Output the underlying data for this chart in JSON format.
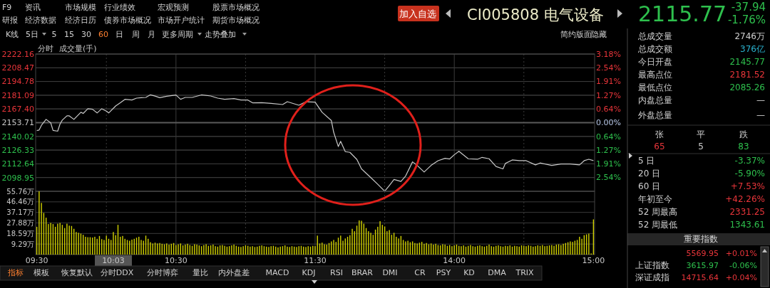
{
  "chart_data": [
    {
      "type": "line",
      "ylim": [
        2085.26,
        2222.16
      ],
      "y2lim": [
        -3.18,
        3.18
      ],
      "grid": true,
      "categories": [
        null,
        null,
        null,
        null,
        null,
        null,
        null,
        null,
        null,
        null,
        null,
        null,
        null,
        null,
        null,
        null,
        null,
        null,
        null,
        null,
        null,
        null,
        null,
        null,
        null,
        null,
        null,
        null,
        null,
        null,
        null,
        null,
        null,
        null,
        null,
        null,
        null,
        null,
        null,
        null,
        null,
        null,
        null,
        null,
        null,
        null,
        null,
        null,
        null,
        null,
        null,
        null,
        null,
        null,
        null,
        null,
        null,
        null,
        null,
        null,
        null,
        null,
        null,
        null,
        null,
        null,
        null,
        null,
        null,
        null,
        null,
        null,
        null,
        null,
        null,
        null,
        null,
        null,
        null,
        null,
        null,
        null,
        null,
        null,
        null,
        null,
        null,
        null,
        null,
        null,
        null,
        null,
        null,
        null,
        null,
        null,
        null,
        null,
        null,
        null,
        null,
        null,
        null,
        null,
        null,
        null,
        null,
        null,
        null,
        null,
        null,
        null,
        null,
        null,
        null,
        null,
        null,
        null,
        null,
        null,
        null,
        null,
        null,
        null,
        null,
        null,
        null,
        null,
        null,
        null,
        null,
        null,
        null,
        null,
        null,
        null,
        null,
        null,
        null,
        null,
        null,
        null,
        null,
        null,
        null,
        null,
        null,
        null,
        null,
        null,
        null,
        null,
        null,
        null,
        null,
        null,
        null,
        null,
        null,
        null,
        null,
        null,
        null,
        null,
        null,
        null,
        null,
        null,
        null,
        null,
        null,
        null,
        null,
        null,
        null,
        null,
        null,
        null,
        null,
        null,
        null,
        null,
        null,
        null,
        null,
        null,
        null,
        null,
        null,
        null,
        null,
        null,
        null,
        null,
        null,
        null,
        null,
        null,
        null,
        null,
        null,
        null,
        null,
        null,
        null,
        null,
        null,
        null,
        null,
        null,
        null,
        null,
        null,
        null,
        null,
        null,
        null,
        null,
        null,
        null,
        null,
        null,
        null,
        null,
        null,
        null,
        null,
        null,
        null,
        null,
        null,
        null,
        null,
        null,
        null,
        null,
        null,
        null,
        null,
        null,
        null
      ],
      "yticks": [
        2222.16,
        2208.47,
        2194.78,
        2181.09,
        {
          "value": 2167.4,
          "label": "2167.40"
        },
        2153.71,
        2140.02,
        2126.33,
        2112.64,
        2098.95
      ],
      "y2ticks": [
        {
          "value": 3.18,
          "label": "3.18%"
        },
        {
          "value": 2.54,
          "label": "2.54%"
        },
        {
          "value": 1.91,
          "label": "1.91%"
        },
        {
          "value": 1.27,
          "label": "1.27%"
        },
        {
          "value": 0.64,
          "label": "0.64%"
        },
        {
          "value": 0,
          "label": "0.00%"
        },
        {
          "value": -0.64,
          "label": "0.64%"
        },
        {
          "value": -1.27,
          "label": "1.27%"
        },
        {
          "value": -1.91,
          "label": "1.91%"
        },
        {
          "value": -2.54,
          "label": "2.54%"
        }
      ],
      "ref_lines": [
        {
          "axis": "y",
          "value": 2153.71,
          "color": "#5a5a5a"
        }
      ],
      "annotations": [
        "分时",
        "成交量(手)"
      ],
      "series": [
        {
          "color": "#c8c8c8",
          "values": [
            2145.8,
            2146.4,
            2151.1,
            null,
            2157.0,
            null,
            2153.5,
            2146.0,
            null,
            2145.2,
            2152.3,
            2156.3,
            null,
            2160.5,
            2160.5,
            null,
            2157.0,
            null,
            null,
            2164.1,
            2162.9,
            null,
            2167.6,
            null,
            2167.1,
            null,
            2163.4,
            null,
            2167.6,
            null,
            2165.2,
            2163.4,
            null,
            null,
            2170.4,
            null,
            2173.5,
            null,
            2177.0,
            null,
            null,
            2176.3,
            null,
            2178.2,
            null,
            2178.6,
            null,
            2178.9,
            null,
            2181.5,
            null,
            2180.2,
            null,
            2178.6,
            null,
            null,
            2180.1,
            null,
            null,
            null,
            2181.3,
            null,
            2177.0,
            null,
            2178.9,
            null,
            null,
            2178.9,
            null,
            null,
            null,
            2181.4,
            null,
            null,
            null,
            2180.3,
            null,
            null,
            2178.2,
            null,
            null,
            2177.0,
            null,
            null,
            null,
            2177.7,
            null,
            null,
            2176.3,
            null,
            null,
            2176.3,
            null,
            2173.5,
            null,
            null,
            null,
            2173.7,
            null,
            null,
            null,
            2173.0,
            null,
            null,
            null,
            null,
            2171.8,
            null,
            2174.6,
            null,
            null,
            null,
            null,
            2171.1,
            null,
            null,
            2174.6,
            null,
            null,
            null,
            2174.2,
            null,
            null,
            2164.1,
            null,
            null,
            null,
            2155.8,
            2144.1,
            null,
            2129.9,
            2135.1,
            null,
            2124.8,
            null,
            2124.1,
            null,
            null,
            2117.0,
            null,
            2107.6,
            null,
            null,
            null,
            2098.9,
            null,
            null,
            2092.3,
            null,
            null,
            2085.3,
            null,
            2091.1,
            null,
            2097.0,
            null,
            null,
            2095.1,
            null,
            2100.5,
            null,
            null,
            2114.6,
            null,
            2111.1,
            null,
            null,
            2104.5,
            null,
            null,
            2111.1,
            null,
            null,
            2115.8,
            null,
            null,
            2118.2,
            null,
            2117.5,
            null,
            2121.7,
            null,
            2125.2,
            null,
            null,
            null,
            2117.7,
            null,
            null,
            null,
            2117.2,
            null,
            2119.1,
            null,
            null,
            2117.7,
            null,
            null,
            2110.0,
            null,
            null,
            2107.6,
            2113.0,
            null,
            null,
            2116.5,
            null,
            null,
            2115.8,
            null,
            null,
            2115.8,
            null,
            null,
            null,
            2111.6,
            null,
            2113.5,
            null,
            null,
            null,
            null,
            2111.1,
            null,
            null,
            null,
            2112.5,
            null,
            null,
            null,
            2112.5,
            null,
            null,
            null,
            2111.6,
            null,
            2115.8,
            null,
            2117.2,
            null,
            2115.8
          ]
        }
      ]
    },
    {
      "type": "bar",
      "ylim": [
        0,
        55.76
      ],
      "grid": true,
      "categories": [
        "09:30",
        null,
        null,
        null,
        null,
        null,
        null,
        null,
        null,
        null,
        null,
        null,
        null,
        null,
        null,
        null,
        null,
        null,
        null,
        null,
        null,
        null,
        null,
        null,
        null,
        null,
        null,
        null,
        null,
        null,
        null,
        null,
        null,
        "10:03",
        null,
        null,
        null,
        null,
        null,
        null,
        null,
        null,
        null,
        null,
        null,
        null,
        null,
        null,
        null,
        null,
        null,
        null,
        null,
        null,
        null,
        null,
        null,
        null,
        null,
        null,
        "10:30",
        null,
        null,
        null,
        null,
        null,
        null,
        null,
        null,
        null,
        null,
        null,
        null,
        null,
        null,
        null,
        null,
        null,
        null,
        null,
        null,
        null,
        null,
        null,
        null,
        null,
        null,
        null,
        null,
        null,
        null,
        null,
        null,
        null,
        null,
        null,
        null,
        null,
        null,
        null,
        null,
        null,
        null,
        null,
        null,
        null,
        null,
        null,
        null,
        null,
        null,
        null,
        null,
        null,
        null,
        null,
        null,
        null,
        null,
        null,
        "11:30",
        null,
        null,
        null,
        null,
        null,
        null,
        null,
        null,
        null,
        null,
        null,
        null,
        null,
        null,
        null,
        null,
        null,
        null,
        null,
        null,
        null,
        null,
        null,
        null,
        null,
        null,
        null,
        null,
        null,
        null,
        null,
        null,
        null,
        null,
        null,
        null,
        null,
        null,
        null,
        null,
        null,
        null,
        null,
        null,
        null,
        null,
        null,
        null,
        null,
        null,
        null,
        null,
        null,
        null,
        null,
        null,
        null,
        null,
        null,
        "14:00",
        null,
        null,
        null,
        null,
        null,
        null,
        null,
        null,
        null,
        null,
        null,
        null,
        null,
        null,
        null,
        null,
        null,
        null,
        null,
        null,
        null,
        null,
        null,
        null,
        null,
        null,
        null,
        null,
        null,
        null,
        null,
        null,
        null,
        null,
        null,
        null,
        null,
        null,
        null,
        null,
        null,
        null,
        null,
        null,
        null,
        null,
        null,
        null,
        null,
        null,
        null,
        null,
        null,
        null,
        null,
        null,
        null,
        null,
        null,
        "15:00"
      ],
      "yticks": [
        {
          "value": 55.76,
          "label": "55.76万"
        },
        {
          "value": 46.46,
          "label": "46.46万"
        },
        {
          "value": 37.17,
          "label": "37.17万"
        },
        {
          "value": 27.88,
          "label": "27.88万"
        },
        {
          "value": 18.59,
          "label": "18.59万"
        },
        {
          "value": 9.29,
          "label": "9.29万"
        }
      ],
      "series": [
        {
          "color": "#d2d200",
          "values": [
            24.5,
            55.7,
            45.5,
            36.7,
            32.5,
            26.9,
            27.9,
            26.9,
            24.5,
            27.2,
            27.9,
            26.2,
            23.4,
            27.2,
            25.5,
            25.2,
            22.7,
            19.9,
            19.2,
            18.5,
            17.4,
            15.7,
            15.3,
            15.3,
            15.0,
            15.7,
            13.9,
            16.4,
            13.6,
            12.9,
            16.7,
            13.9,
            12.9,
            19.9,
            17.1,
            26.2,
            15.7,
            16.4,
            13.9,
            12.9,
            12.2,
            13.2,
            13.9,
            14.9,
            15.7,
            12.9,
            12.2,
            16.7,
            13.9,
            10.9,
            9.8,
            10.5,
            9.8,
            10.2,
            9.5,
            9.1,
            9.8,
            8.8,
            9.5,
            10.2,
            8.4,
            9.1,
            9.8,
            8.1,
            8.8,
            9.5,
            8.4,
            7.7,
            9.1,
            8.8,
            8.1,
            7.4,
            8.4,
            9.1,
            7.7,
            8.1,
            8.8,
            7.4,
            7.0,
            8.1,
            8.4,
            7.7,
            7.0,
            7.4,
            8.1,
            8.8,
            7.7,
            7.0,
            6.7,
            7.4,
            8.1,
            7.7,
            7.0,
            7.4,
            6.7,
            7.0,
            7.7,
            8.1,
            7.4,
            7.0,
            6.7,
            7.4,
            7.7,
            7.0,
            6.3,
            7.0,
            7.4,
            8.1,
            7.0,
            6.7,
            7.4,
            7.0,
            6.7,
            7.4,
            7.7,
            7.0,
            6.7,
            7.4,
            7.0,
            7.7,
            7.4,
            16.7,
            9.8,
            10.5,
            9.1,
            8.8,
            10.2,
            11.6,
            12.9,
            11.2,
            14.9,
            16.7,
            12.2,
            14.2,
            15.7,
            17.1,
            22.7,
            20.6,
            25.5,
            30.1,
            29.8,
            27.2,
            23.4,
            20.6,
            19.2,
            17.4,
            22.0,
            24.5,
            29.4,
            26.2,
            24.8,
            20.6,
            21.6,
            17.4,
            19.2,
            15.7,
            14.2,
            16.4,
            12.9,
            11.6,
            12.2,
            10.9,
            11.6,
            10.2,
            9.8,
            10.5,
            11.2,
            9.5,
            10.2,
            9.1,
            9.8,
            8.8,
            9.5,
            8.4,
            8.1,
            9.1,
            8.8,
            7.7,
            8.4,
            7.4,
            8.1,
            8.8,
            7.7,
            7.4,
            8.1,
            7.0,
            7.7,
            8.4,
            7.4,
            7.0,
            7.7,
            8.1,
            7.4,
            7.0,
            7.7,
            8.8,
            7.4,
            7.0,
            7.7,
            8.1,
            7.4,
            7.0,
            7.7,
            7.4,
            8.1,
            7.0,
            7.7,
            7.4,
            7.0,
            8.1,
            7.7,
            7.4,
            8.1,
            7.7,
            7.0,
            7.4,
            8.1,
            7.7,
            8.4,
            7.4,
            7.7,
            8.1,
            8.4,
            7.7,
            8.8,
            9.1,
            8.4,
            9.5,
            10.2,
            10.9,
            11.6,
            11.2,
            12.2,
            12.9,
            15.7,
            13.9,
            17.1,
            17.8,
            18.5,
            1.0,
            31.0
          ]
        }
      ]
    },
    {
      "type": "other",
      "annotations": [
        "F9",
        "资讯",
        "市场规模",
        "行业绩效",
        "宏观预测",
        "股票市场概况",
        "研报",
        "经济数据",
        "经济日历",
        "债券市场概况",
        "市场开户统计",
        "期货市场概况",
        "加入自选",
        "CI005808 电气设备",
        "2115.77",
        "-37.94",
        "-1.76%",
        "K线",
        "5日",
        "5",
        "15",
        "30",
        "60",
        "日",
        "周",
        "月",
        "更多周期",
        "走势叠加",
        "简约版面",
        "隐藏",
        "总成交量",
        "2746万",
        "总成交额",
        "376亿",
        "今日开盘",
        "2145.77",
        "最高点位",
        "2181.52",
        "最低点位",
        "2085.26",
        "内盘总量",
        "—",
        "外盘总量",
        "—",
        "张",
        "平",
        "跌",
        "65",
        "5",
        "83",
        "5 日",
        "-3.37%",
        "20 日",
        "-5.90%",
        "60 日",
        "+7.53%",
        "年初至今",
        "+42.26%",
        "52 周最高",
        "2331.25",
        "52 周最低",
        "1343.61",
        "重要指数",
        "5569.95",
        "+0.01%",
        "上证指数",
        "3615.97",
        "-0.06%",
        "深证成指",
        "14715.64",
        "+0.04%",
        "指标",
        "模板",
        "恢复默认",
        "分时DDX",
        "分时博弈",
        "量比",
        "内外盘差",
        "MACD",
        "KDJ",
        "RSI",
        "BRAR",
        "DMI",
        "CR",
        "PSY",
        "KD",
        "DMA",
        "TRIX"
      ]
    }
  ]
}
